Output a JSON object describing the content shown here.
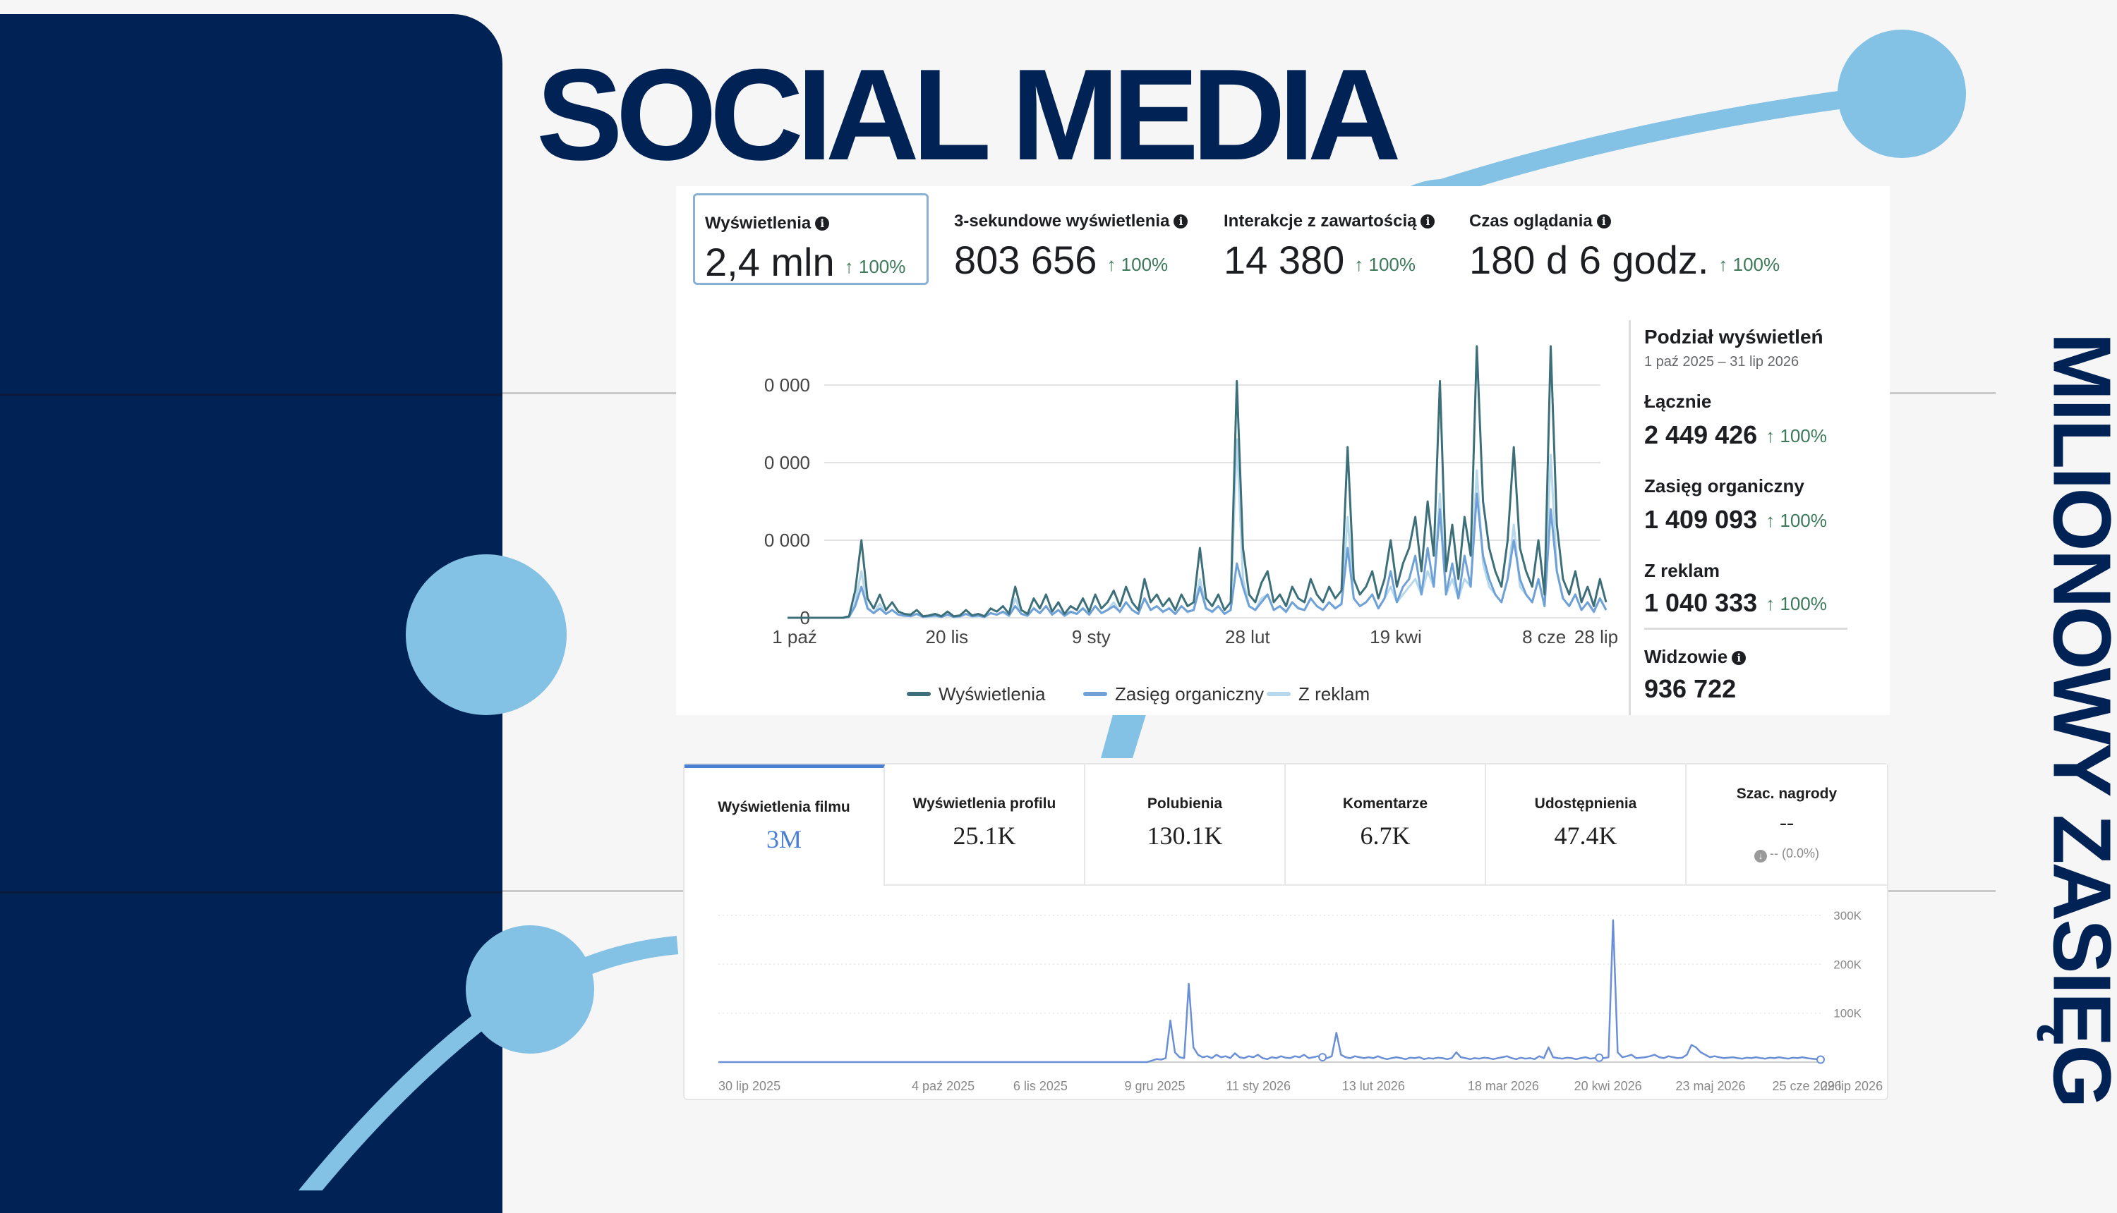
{
  "slide": {
    "title": "SOCIAL MEDIA",
    "side_title": "MILIONOWY ZASIĘG"
  },
  "colors": {
    "navy": "#002255",
    "accent_blue": "#83c1e5",
    "meta_views": "#3c6f79",
    "meta_organic": "#6fa0d6",
    "meta_ads": "#b6d8ec",
    "tiktok_line": "#6a8fd6",
    "positive": "#3c7a5a"
  },
  "meta": {
    "tiles": [
      {
        "label": "Wyświetlenia",
        "value": "2,4 mln",
        "change": "↑ 100%",
        "info_icon": "info-icon"
      },
      {
        "label": "3-sekundowe wyświetlenia",
        "value": "803 656",
        "change": "↑ 100%",
        "info_icon": "info-icon"
      },
      {
        "label": "Interakcje z zawartością",
        "value": "14 380",
        "change": "↑ 100%",
        "info_icon": "info-icon"
      },
      {
        "label": "Czas oglądania",
        "value": "180 d 6 godz.",
        "change": "↑ 100%",
        "info_icon": "info-icon"
      }
    ],
    "breakdown": {
      "title": "Podział wyświetleń",
      "range": "1 paź 2025 – 31 lip 2026",
      "total_label": "Łącznie",
      "total_value": "2 449 426",
      "total_change": "↑ 100%",
      "organic_label": "Zasięg organiczny",
      "organic_value": "1 409 093",
      "organic_change": "↑ 100%",
      "ads_label": "Z reklam",
      "ads_value": "1 040 333",
      "ads_change": "↑ 100%",
      "viewers_label": "Widzowie",
      "viewers_value": "936 722"
    }
  },
  "tiktok": {
    "tabs": [
      {
        "label": "Wyświetlenia filmu",
        "value": "3M",
        "active": true
      },
      {
        "label": "Wyświetlenia profilu",
        "value": "25.1K"
      },
      {
        "label": "Polubienia",
        "value": "130.1K"
      },
      {
        "label": "Komentarze",
        "value": "6.7K"
      },
      {
        "label": "Udostępnienia",
        "value": "47.4K"
      },
      {
        "label": "Szac. nagrody",
        "value": "--",
        "sub": "-- (0.0%)"
      }
    ]
  },
  "chart_data": [
    {
      "type": "line",
      "title": "",
      "xlabel": "",
      "ylabel": "",
      "x_ticks": [
        "1 paź",
        "20 lis",
        "9 sty",
        "28 lut",
        "19 kwi",
        "8 cze",
        "28 lip"
      ],
      "y_ticks": [
        "0",
        "0 000",
        "0 000",
        "0 000"
      ],
      "ylim": [
        0,
        3
      ],
      "grid": true,
      "legend": "bottom",
      "series": [
        {
          "name": "Wyświetlenia",
          "color": "#3c6f79",
          "values": [
            0,
            0,
            0,
            0,
            0,
            0,
            0,
            0,
            0,
            0,
            0.02,
            0.35,
            1.0,
            0.25,
            0.12,
            0.3,
            0.1,
            0.2,
            0.08,
            0.05,
            0.04,
            0.1,
            0.02,
            0.03,
            0.05,
            0.02,
            0.08,
            0.02,
            0.03,
            0.1,
            0.03,
            0.05,
            0.02,
            0.12,
            0.08,
            0.15,
            0.05,
            0.4,
            0.1,
            0.05,
            0.25,
            0.12,
            0.3,
            0.08,
            0.2,
            0.05,
            0.15,
            0.1,
            0.25,
            0.08,
            0.3,
            0.12,
            0.2,
            0.35,
            0.15,
            0.4,
            0.2,
            0.1,
            0.5,
            0.2,
            0.3,
            0.15,
            0.25,
            0.1,
            0.3,
            0.15,
            0.2,
            0.9,
            0.25,
            0.15,
            0.3,
            0.1,
            0.2,
            3.05,
            0.9,
            0.3,
            0.2,
            0.45,
            0.6,
            0.2,
            0.3,
            0.15,
            0.4,
            0.25,
            0.2,
            0.5,
            0.3,
            0.2,
            0.4,
            0.25,
            0.35,
            2.2,
            0.5,
            0.3,
            0.4,
            0.6,
            0.25,
            0.5,
            1.0,
            0.4,
            0.7,
            0.9,
            1.3,
            0.6,
            1.5,
            0.8,
            3.05,
            0.6,
            1.2,
            0.5,
            1.3,
            0.8,
            3.5,
            1.5,
            0.9,
            0.6,
            0.4,
            1.0,
            2.2,
            0.9,
            0.6,
            0.4,
            1.0,
            0.3,
            3.5,
            1.2,
            0.5,
            0.3,
            0.6,
            0.2,
            0.4,
            0.15,
            0.5,
            0.2
          ]
        },
        {
          "name": "Zasięg organiczny",
          "color": "#6fa0d6",
          "values": [
            0,
            0,
            0,
            0,
            0,
            0,
            0,
            0,
            0,
            0,
            0.01,
            0.15,
            0.4,
            0.12,
            0.06,
            0.12,
            0.05,
            0.1,
            0.04,
            0.03,
            0.02,
            0.05,
            0.01,
            0.02,
            0.03,
            0.01,
            0.04,
            0.01,
            0.02,
            0.05,
            0.02,
            0.03,
            0.01,
            0.06,
            0.04,
            0.08,
            0.03,
            0.15,
            0.05,
            0.03,
            0.12,
            0.06,
            0.15,
            0.04,
            0.1,
            0.03,
            0.08,
            0.05,
            0.12,
            0.04,
            0.15,
            0.06,
            0.1,
            0.15,
            0.08,
            0.2,
            0.1,
            0.05,
            0.25,
            0.1,
            0.15,
            0.08,
            0.12,
            0.05,
            0.15,
            0.08,
            0.1,
            0.4,
            0.12,
            0.08,
            0.15,
            0.05,
            0.1,
            0.7,
            0.4,
            0.15,
            0.1,
            0.2,
            0.3,
            0.1,
            0.15,
            0.08,
            0.2,
            0.12,
            0.1,
            0.25,
            0.15,
            0.1,
            0.2,
            0.12,
            0.18,
            0.9,
            0.25,
            0.15,
            0.2,
            0.3,
            0.12,
            0.25,
            0.6,
            0.2,
            0.4,
            0.5,
            0.8,
            0.3,
            0.9,
            0.4,
            1.4,
            0.3,
            0.7,
            0.25,
            0.8,
            0.4,
            1.6,
            0.8,
            0.5,
            0.3,
            0.2,
            0.5,
            1.0,
            0.5,
            0.3,
            0.2,
            0.5,
            0.15,
            1.4,
            0.6,
            0.25,
            0.15,
            0.3,
            0.1,
            0.2,
            0.08,
            0.25,
            0.1
          ]
        },
        {
          "name": "Z reklam",
          "color": "#b6d8ec",
          "values": [
            0,
            0,
            0,
            0,
            0,
            0,
            0,
            0,
            0,
            0,
            0.01,
            0.2,
            0.6,
            0.13,
            0.06,
            0.18,
            0.05,
            0.1,
            0.04,
            0.02,
            0.02,
            0.05,
            0.01,
            0.01,
            0.02,
            0.01,
            0.04,
            0.01,
            0.01,
            0.05,
            0.01,
            0.02,
            0.01,
            0.06,
            0.04,
            0.07,
            0.02,
            0.25,
            0.05,
            0.02,
            0.13,
            0.06,
            0.15,
            0.04,
            0.1,
            0.02,
            0.07,
            0.05,
            0.13,
            0.04,
            0.15,
            0.06,
            0.1,
            0.2,
            0.07,
            0.2,
            0.1,
            0.05,
            0.25,
            0.1,
            0.15,
            0.07,
            0.13,
            0.05,
            0.15,
            0.07,
            0.1,
            0.5,
            0.13,
            0.07,
            0.15,
            0.05,
            0.1,
            2.3,
            0.5,
            0.15,
            0.1,
            0.25,
            0.3,
            0.1,
            0.15,
            0.07,
            0.2,
            0.13,
            0.1,
            0.25,
            0.15,
            0.1,
            0.2,
            0.13,
            0.17,
            1.3,
            0.25,
            0.15,
            0.2,
            0.3,
            0.13,
            0.25,
            0.4,
            0.2,
            0.3,
            0.4,
            0.5,
            0.3,
            0.6,
            0.4,
            1.6,
            0.3,
            0.5,
            0.25,
            0.5,
            0.4,
            1.9,
            0.7,
            0.4,
            0.3,
            0.2,
            0.5,
            1.2,
            0.4,
            0.3,
            0.2,
            0.5,
            0.15,
            2.1,
            0.6,
            0.25,
            0.15,
            0.3,
            0.1,
            0.2,
            0.07,
            0.25,
            0.1
          ]
        }
      ]
    },
    {
      "type": "line",
      "title": "",
      "xlabel": "",
      "ylabel": "",
      "x_ticks": [
        "30 lip 2025",
        "4 paź 2025",
        "6 lis 2025",
        "9 gru 2025",
        "11 sty 2026",
        "13 lut 2026",
        "18 mar 2026",
        "20 kwi 2026",
        "23 maj 2026",
        "25 cze 2026",
        "29 lip 2026"
      ],
      "y_ticks": [
        "100K",
        "200K",
        "300K"
      ],
      "ylim": [
        0,
        320000
      ],
      "grid": true,
      "legend": "none",
      "series": [
        {
          "name": "Wyświetlenia filmu",
          "color": "#6a8fd6",
          "values": [
            0,
            0,
            0,
            0,
            0,
            0,
            0,
            0,
            0,
            0,
            0,
            0,
            0,
            0,
            0,
            0,
            0,
            0,
            0,
            0,
            0,
            0,
            0,
            0,
            0,
            0,
            0,
            0,
            0,
            0,
            0,
            0,
            0,
            0,
            0,
            0,
            0,
            0,
            0,
            0,
            0,
            0,
            0,
            0,
            0,
            0,
            0,
            0,
            0,
            0,
            0,
            0,
            0,
            0,
            0,
            0,
            0,
            0,
            0,
            0,
            0,
            0,
            0,
            0,
            0,
            0,
            0,
            0,
            0,
            0,
            0,
            0,
            0,
            0,
            0,
            0,
            0,
            0,
            0,
            0,
            0,
            0,
            0,
            0,
            0,
            0,
            0,
            0,
            0,
            0,
            0,
            0,
            0,
            0,
            3000,
            6000,
            5000,
            8000,
            85000,
            20000,
            10000,
            8000,
            160000,
            30000,
            15000,
            10000,
            12000,
            8000,
            15000,
            10000,
            12000,
            8000,
            18000,
            10000,
            8000,
            12000,
            10000,
            15000,
            8000,
            6000,
            10000,
            8000,
            12000,
            9000,
            8000,
            12000,
            10000,
            15000,
            8000,
            10000,
            12000,
            10000,
            8000,
            12000,
            60000,
            15000,
            10000,
            8000,
            12000,
            10000,
            8000,
            10000,
            8000,
            12000,
            8000,
            6000,
            8000,
            10000,
            8000,
            6000,
            9000,
            8000,
            10000,
            6000,
            8000,
            7000,
            9000,
            8000,
            6000,
            8000,
            20000,
            10000,
            8000,
            6000,
            8000,
            7000,
            9000,
            8000,
            6000,
            8000,
            10000,
            12000,
            8000,
            6000,
            9000,
            7000,
            8000,
            6000,
            12000,
            8000,
            30000,
            10000,
            8000,
            7000,
            9000,
            8000,
            6000,
            8000,
            10000,
            7000,
            8000,
            9000,
            8000,
            10000,
            290000,
            20000,
            10000,
            12000,
            15000,
            8000,
            9000,
            10000,
            12000,
            15000,
            10000,
            8000,
            12000,
            10000,
            8000,
            9000,
            15000,
            35000,
            30000,
            20000,
            15000,
            10000,
            12000,
            10000,
            8000,
            9000,
            10000,
            8000,
            7000,
            9000,
            8000,
            10000,
            8000,
            7000,
            9000,
            8000,
            10000,
            8000,
            7000,
            9000,
            8000,
            10000,
            8000,
            7000,
            6000,
            5000
          ]
        }
      ]
    }
  ]
}
